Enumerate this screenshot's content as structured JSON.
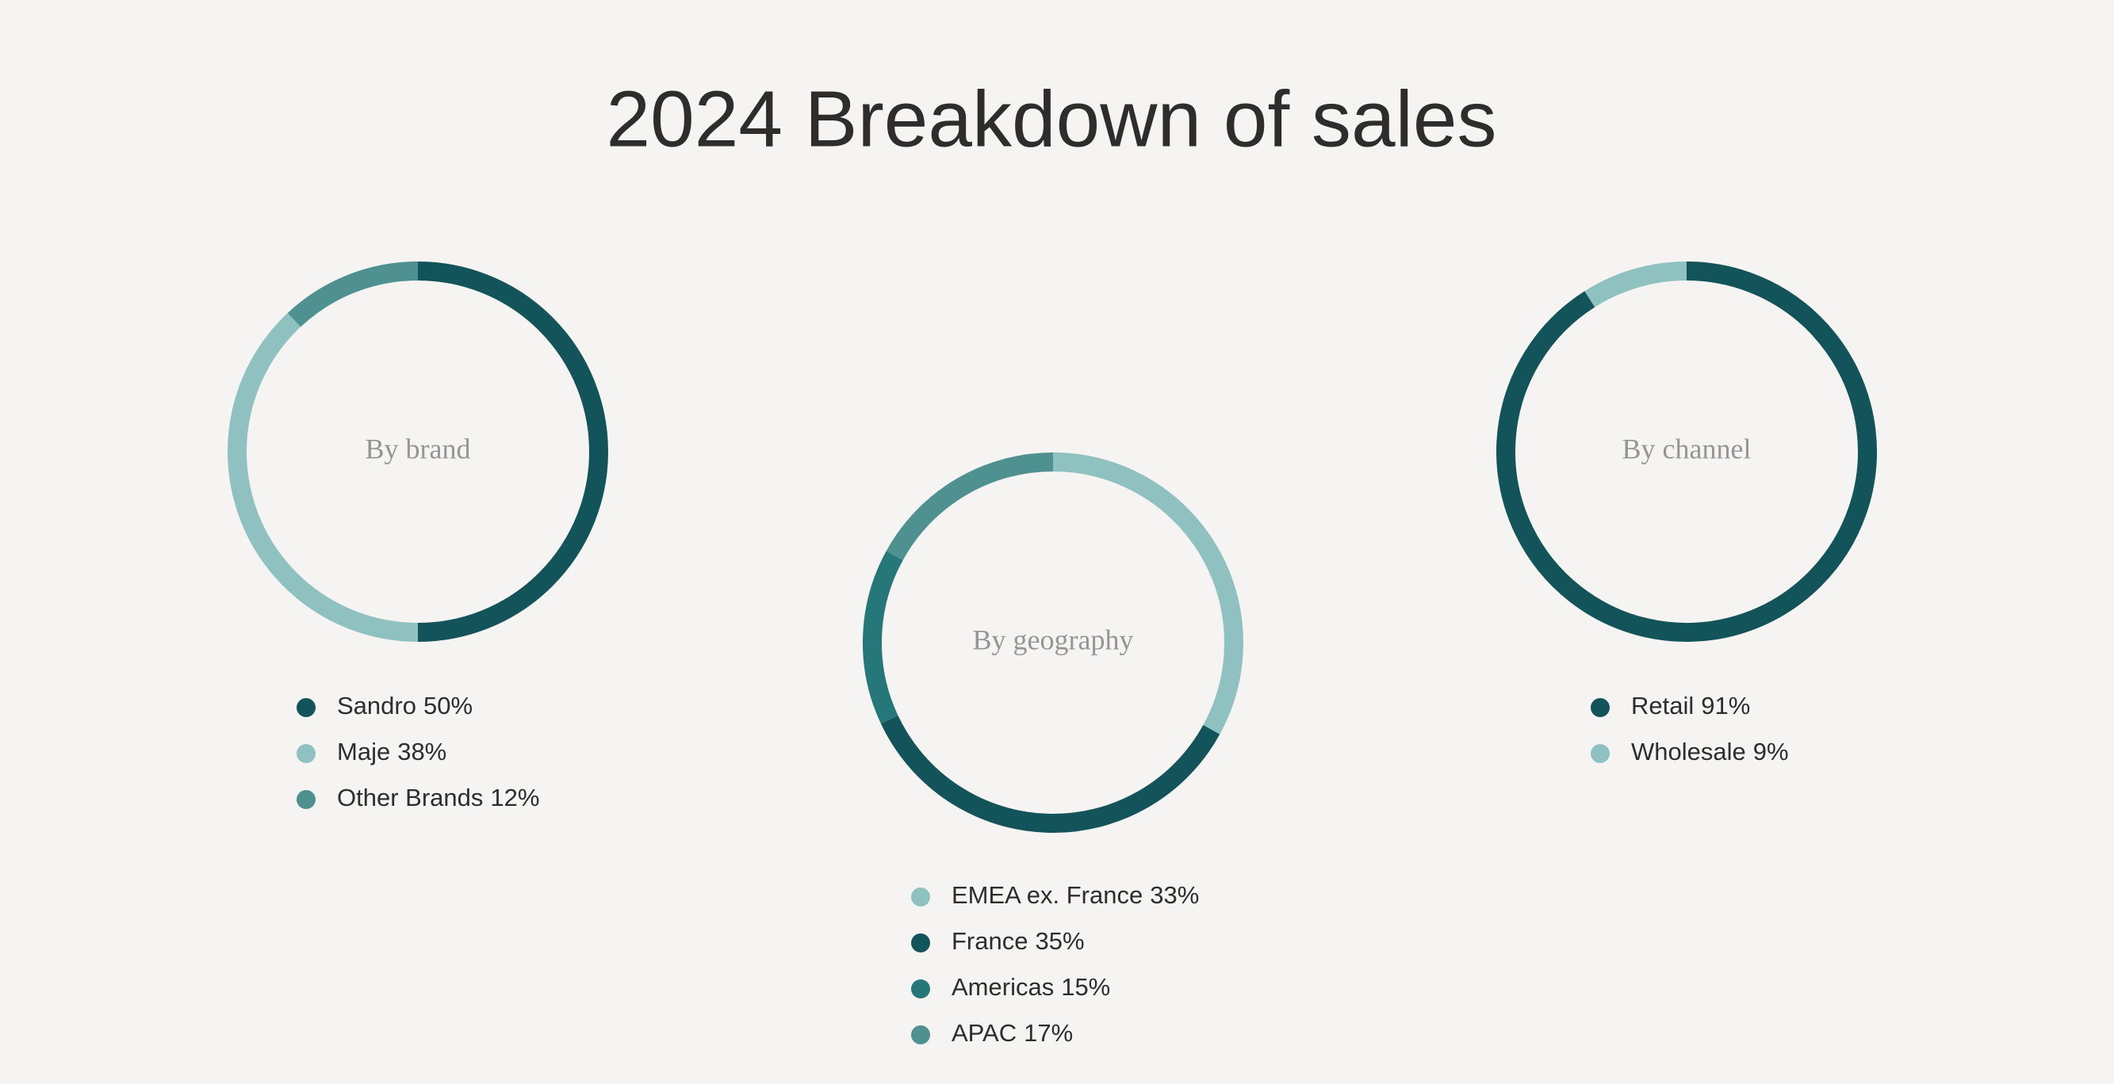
{
  "title": "2024 Breakdown of sales",
  "chart_data": [
    {
      "type": "donut",
      "title": "By brand",
      "categories": [
        "Sandro",
        "Maje",
        "Other Brands"
      ],
      "values": [
        50,
        38,
        12
      ],
      "value_labels": [
        "50%",
        "38%",
        "12%"
      ],
      "colors": [
        "#13545a",
        "#8fc1c0",
        "#4f9191"
      ]
    },
    {
      "type": "donut",
      "title": "By geography",
      "categories": [
        "EMEA ex. France",
        "France",
        "Americas",
        "APAC"
      ],
      "values": [
        33,
        35,
        15,
        17
      ],
      "value_labels": [
        "33%",
        "35%",
        "15%",
        "17%"
      ],
      "colors": [
        "#8fc1c0",
        "#13545a",
        "#25777a",
        "#4f9191"
      ]
    },
    {
      "type": "donut",
      "title": "By channel",
      "categories": [
        "Retail",
        "Wholesale"
      ],
      "values": [
        91,
        9
      ],
      "value_labels": [
        "91%",
        "9%"
      ],
      "colors": [
        "#13545a",
        "#8fc1c0"
      ]
    }
  ]
}
